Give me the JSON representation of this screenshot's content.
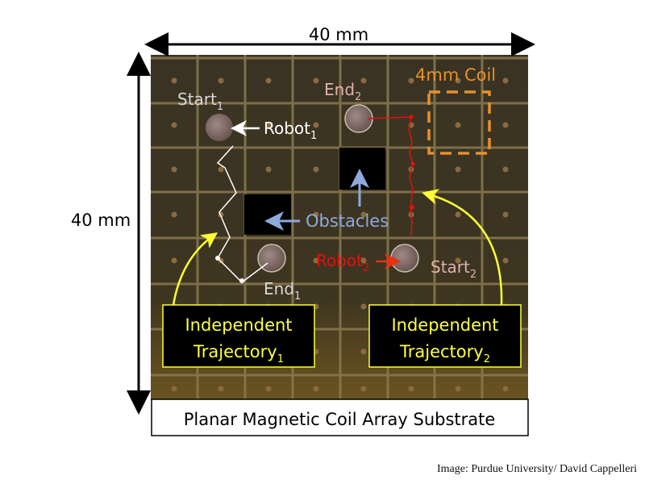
{
  "dimension_top": "40 mm",
  "dimension_left": "40 mm",
  "labels": {
    "start1": {
      "text": "Start",
      "sub": "1"
    },
    "end1": {
      "text": "End",
      "sub": "1"
    },
    "start2": {
      "text": "Start",
      "sub": "2"
    },
    "end2": {
      "text": "End",
      "sub": "2"
    },
    "robot1": {
      "text": "Robot",
      "sub": "1"
    },
    "robot2": {
      "text": "Robot",
      "sub": "2"
    },
    "obstacles": "Obstacles",
    "coil": "4mm Coil"
  },
  "boxes": [
    {
      "line1": "Independent",
      "line2": "Trajectory",
      "sub": "1"
    },
    {
      "line1": "Independent",
      "line2": "Trajectory",
      "sub": "2"
    }
  ],
  "caption": "Planar Magnetic Coil Array Substrate",
  "credit": "Image: Purdue University/ David Cappelleri",
  "colors": {
    "trajectory1": "#ffffff",
    "trajectory2": "#e01010",
    "obstacle_arrows": "#8eaadb",
    "coil_box": "#e8902a",
    "callouts": "#ffff33"
  }
}
